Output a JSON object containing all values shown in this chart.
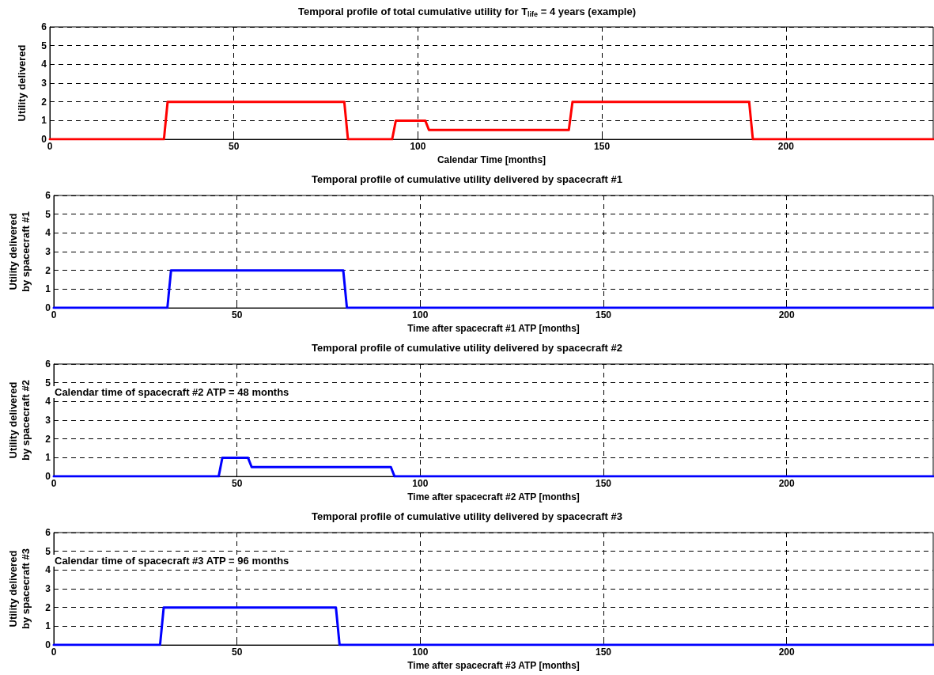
{
  "chart_data": [
    {
      "type": "line",
      "title": "Temporal profile of total cumulative utility for T$_{life}$ = 4 years (example)",
      "xlabel": "Calendar Time [months]",
      "ylabel": "Utility delivered",
      "xlim": [
        0,
        240
      ],
      "xticks": [
        0,
        50,
        100,
        150,
        200
      ],
      "ylim": [
        0,
        6
      ],
      "yticks": [
        0,
        1,
        2,
        3,
        4,
        5,
        6
      ],
      "grid": true,
      "marker": "none",
      "line_style": "solid",
      "series": [
        {
          "color": "#ff0000",
          "x": [
            0,
            31,
            32,
            80,
            81,
            93,
            94,
            102,
            103,
            141,
            142,
            190,
            191,
            240
          ],
          "values": [
            0,
            0,
            2,
            2,
            0,
            0,
            1,
            1,
            0.5,
            0.5,
            2,
            2,
            0,
            0
          ]
        }
      ]
    },
    {
      "type": "line",
      "title": "Temporal profile of cumulative utility delivered by spacecraft #1",
      "xlabel": "Time after spacecraft #1 ATP [months]",
      "ylabel": "Utility delivered by spacecraft #1",
      "xlim": [
        0,
        240
      ],
      "xticks": [
        0,
        50,
        100,
        150,
        200
      ],
      "ylim": [
        0,
        6
      ],
      "yticks": [
        0,
        1,
        2,
        3,
        4,
        5,
        6
      ],
      "grid": true,
      "marker": "none",
      "line_style": "solid",
      "series": [
        {
          "color": "#0000ff",
          "x": [
            0,
            31,
            32,
            79,
            80,
            240
          ],
          "values": [
            0,
            0,
            2,
            2,
            0,
            0
          ]
        }
      ]
    },
    {
      "type": "line",
      "title": "Temporal profile of cumulative utility delivered by spacecraft #2",
      "xlabel": "Time after spacecraft #2 ATP [months]",
      "ylabel": "Utility delivered by spacecraft #2",
      "xlim": [
        0,
        240
      ],
      "xticks": [
        0,
        50,
        100,
        150,
        200
      ],
      "ylim": [
        0,
        6
      ],
      "yticks": [
        0,
        1,
        2,
        3,
        4,
        5,
        6
      ],
      "grid": true,
      "marker": "none",
      "line_style": "solid",
      "annotations": [
        "Calendar time of spacecraft #2 ATP = 48 months"
      ],
      "series": [
        {
          "color": "#0000ff",
          "x": [
            0,
            45,
            46,
            53,
            54,
            92,
            93,
            240
          ],
          "values": [
            0,
            0,
            1,
            1,
            0.5,
            0.5,
            0,
            0
          ]
        }
      ]
    },
    {
      "type": "line",
      "title": "Temporal profile of cumulative utility delivered by spacecraft #3",
      "xlabel": "Time after spacecraft #3 ATP [months]",
      "ylabel": "Utility delivered by spacecraft #3",
      "xlim": [
        0,
        240
      ],
      "xticks": [
        0,
        50,
        100,
        150,
        200
      ],
      "ylim": [
        0,
        6
      ],
      "yticks": [
        0,
        1,
        2,
        3,
        4,
        5,
        6
      ],
      "grid": true,
      "marker": "none",
      "line_style": "solid",
      "annotations": [
        "Calendar time of spacecraft #3 ATP = 96 months"
      ],
      "series": [
        {
          "color": "#0000ff",
          "x": [
            0,
            29,
            30,
            77,
            78,
            240
          ],
          "values": [
            0,
            0,
            2,
            2,
            0,
            0
          ]
        }
      ]
    }
  ]
}
